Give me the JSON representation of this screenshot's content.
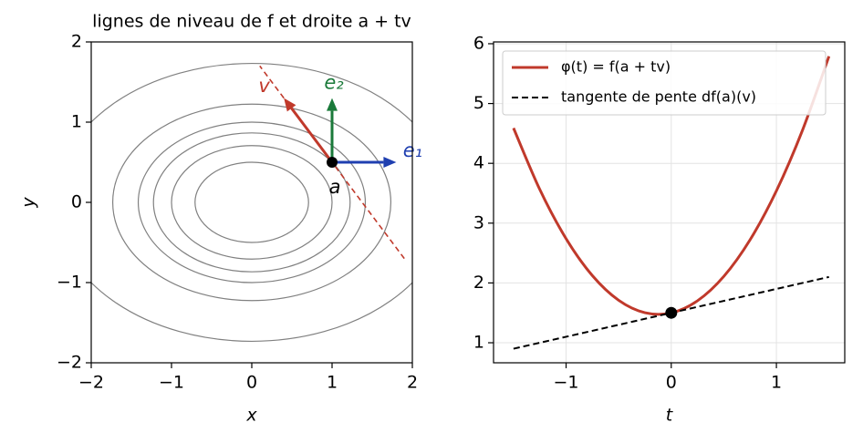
{
  "chart_data": [
    {
      "type": "contour",
      "title": "lignes de niveau de f et droite a + tv",
      "xlabel": "x",
      "ylabel": "y",
      "xlim": [
        -2,
        2
      ],
      "ylim": [
        -2,
        2
      ],
      "xticks": [
        {
          "value": -2,
          "label": "−2"
        },
        {
          "value": -1,
          "label": "−1"
        },
        0,
        1,
        2
      ],
      "yticks": [
        {
          "value": -2,
          "label": "−2"
        },
        {
          "value": -1,
          "label": "−1"
        },
        0,
        1,
        2
      ],
      "levels": [
        0.5,
        1,
        1.5,
        2,
        3,
        6
      ],
      "contour_color": "#808080",
      "line_color": "#c0392b",
      "point": {
        "label": "a",
        "x": 1,
        "y": 0.5,
        "color": "#000000"
      },
      "vectors": [
        {
          "name": "e₁",
          "dx": 0.8,
          "dy": 0,
          "color": "#1f3fb0"
        },
        {
          "name": "e₂",
          "dx": 0,
          "dy": 0.8,
          "color": "#1a7a3a"
        },
        {
          "name": "v",
          "dx": -0.6,
          "dy": 0.8,
          "color": "#c0392b"
        }
      ]
    },
    {
      "type": "line",
      "xlabel": "t",
      "xlim": [
        -1.69,
        1.65
      ],
      "ylim": [
        0.665,
        6.03
      ],
      "xticks": [
        {
          "value": -1,
          "label": "−1"
        },
        0,
        1
      ],
      "yticks": [
        1,
        2,
        3,
        4,
        5,
        6
      ],
      "grid": true,
      "legend": "upper left",
      "x": [
        -1.5,
        -1.25,
        -1,
        -0.75,
        -0.5,
        -0.25,
        0,
        0.25,
        0.5,
        0.75,
        1,
        1.25,
        1.5
      ],
      "series": [
        {
          "name": "φ(t) = f(a + tv)",
          "color": "#c0392b",
          "values": [
            4.59,
            3.5625,
            2.74,
            2.1225,
            1.71,
            1.5025,
            1.5,
            1.7025,
            2.11,
            2.7225,
            3.54,
            4.5625,
            5.79
          ]
        },
        {
          "name": "tangente de pente df(a)(v)",
          "color": "#000000",
          "dash": true,
          "x": [
            -1.5,
            1.5
          ],
          "values": [
            0.9,
            2.1
          ]
        }
      ],
      "point": {
        "x": 0,
        "y": 1.5,
        "color": "#000000"
      }
    }
  ]
}
